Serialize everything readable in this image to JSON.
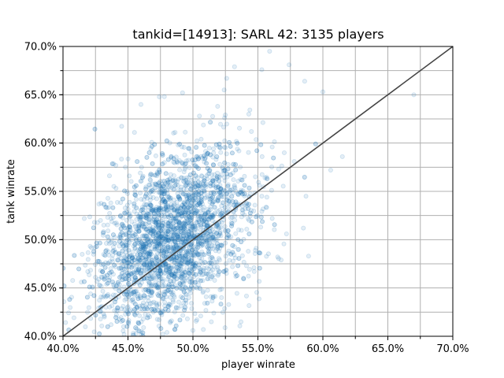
{
  "chart_data": {
    "type": "scatter",
    "title": "tankid=[14913]: SARL 42: 3135 players",
    "xlabel": "player winrate",
    "ylabel": "tank winrate",
    "xlim": [
      0.4,
      0.7
    ],
    "ylim": [
      0.4,
      0.7
    ],
    "xticks": [
      0.4,
      0.45,
      0.5,
      0.55,
      0.6,
      0.65,
      0.7
    ],
    "yticks": [
      0.4,
      0.45,
      0.5,
      0.55,
      0.6,
      0.65,
      0.7
    ],
    "xtick_labels": [
      "40.0%",
      "45.0%",
      "50.0%",
      "55.0%",
      "60.0%",
      "65.0%",
      "70.0%"
    ],
    "ytick_labels": [
      "40.0%",
      "45.0%",
      "50.0%",
      "55.0%",
      "60.0%",
      "65.0%",
      "70.0%"
    ],
    "grid": true,
    "point_color": "#1f77b4",
    "point_alpha": 0.12,
    "reference_line": {
      "label": "y = x",
      "from": [
        0.4,
        0.4
      ],
      "to": [
        0.7,
        0.7
      ],
      "color": "#444444"
    },
    "player_count": 3135,
    "cluster": {
      "x_mean": 0.482,
      "y_mean": 0.5,
      "x_std": 0.029,
      "y_std": 0.045,
      "correlation": 0.38
    },
    "points": [
      [
        0.67,
        0.65
      ],
      [
        0.574,
        0.681
      ],
      [
        0.553,
        0.676
      ],
      [
        0.559,
        0.695
      ],
      [
        0.532,
        0.679
      ],
      [
        0.586,
        0.664
      ],
      [
        0.6,
        0.653
      ],
      [
        0.615,
        0.586
      ],
      [
        0.606,
        0.572
      ],
      [
        0.587,
        0.545
      ],
      [
        0.585,
        0.512
      ],
      [
        0.589,
        0.483
      ],
      [
        0.578,
        0.581
      ],
      [
        0.543,
        0.63
      ],
      [
        0.526,
        0.667
      ],
      [
        0.537,
        0.415
      ],
      [
        0.506,
        0.421
      ],
      [
        0.43,
        0.431
      ],
      [
        0.437,
        0.412
      ],
      [
        0.429,
        0.468
      ],
      [
        0.437,
        0.522
      ],
      [
        0.434,
        0.533
      ],
      [
        0.448,
        0.575
      ],
      [
        0.455,
        0.611
      ],
      [
        0.46,
        0.64
      ],
      [
        0.478,
        0.648
      ],
      [
        0.492,
        0.652
      ],
      [
        0.505,
        0.628
      ],
      [
        0.519,
        0.638
      ],
      [
        0.524,
        0.655
      ],
      [
        0.545,
        0.612
      ],
      [
        0.561,
        0.596
      ],
      [
        0.566,
        0.573
      ],
      [
        0.553,
        0.545
      ],
      [
        0.561,
        0.522
      ],
      [
        0.572,
        0.506
      ],
      [
        0.548,
        0.489
      ],
      [
        0.533,
        0.462
      ],
      [
        0.522,
        0.44
      ],
      [
        0.508,
        0.407
      ],
      [
        0.48,
        0.404
      ],
      [
        0.462,
        0.409
      ],
      [
        0.447,
        0.402
      ]
    ]
  }
}
